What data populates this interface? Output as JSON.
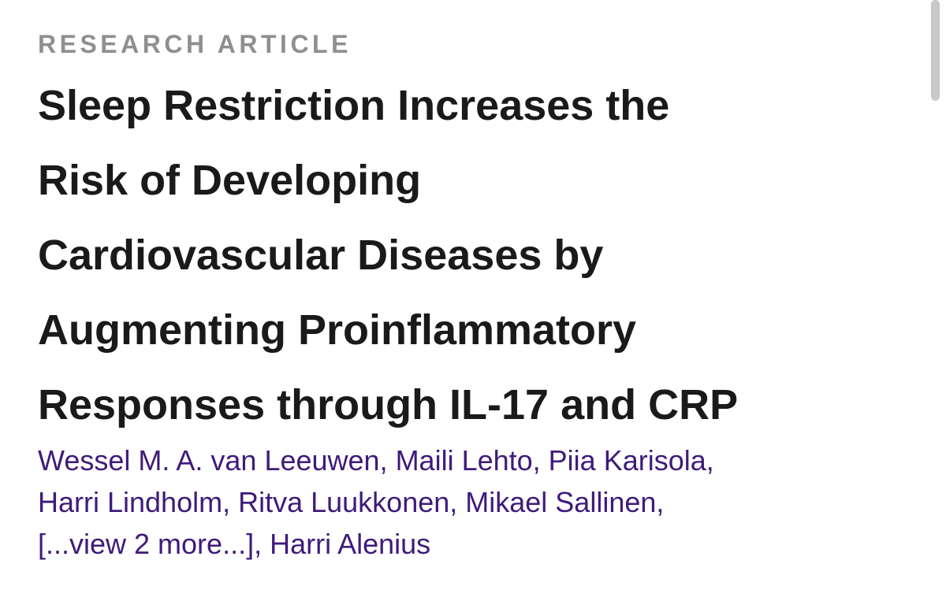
{
  "article": {
    "type_label": "RESEARCH ARTICLE",
    "title_lines": [
      "Sleep Restriction Increases the",
      "Risk of Developing",
      "Cardiovascular Diseases by",
      "Augmenting Proinflammatory",
      "Responses through IL-17 and CRP"
    ],
    "authors_line1": "Wessel M. A. van Leeuwen, Maili Lehto, Piia Karisola,",
    "authors_line2": "Harri Lindholm, Ritva Luukkonen, Mikael Sallinen,",
    "view_more": "[...view 2 more...]",
    "authors_line3_rest": ", Harri Alenius"
  },
  "colors": {
    "kicker": "#8f8f8f",
    "title": "#1a1a1a",
    "authors": "#3f1a7a"
  }
}
